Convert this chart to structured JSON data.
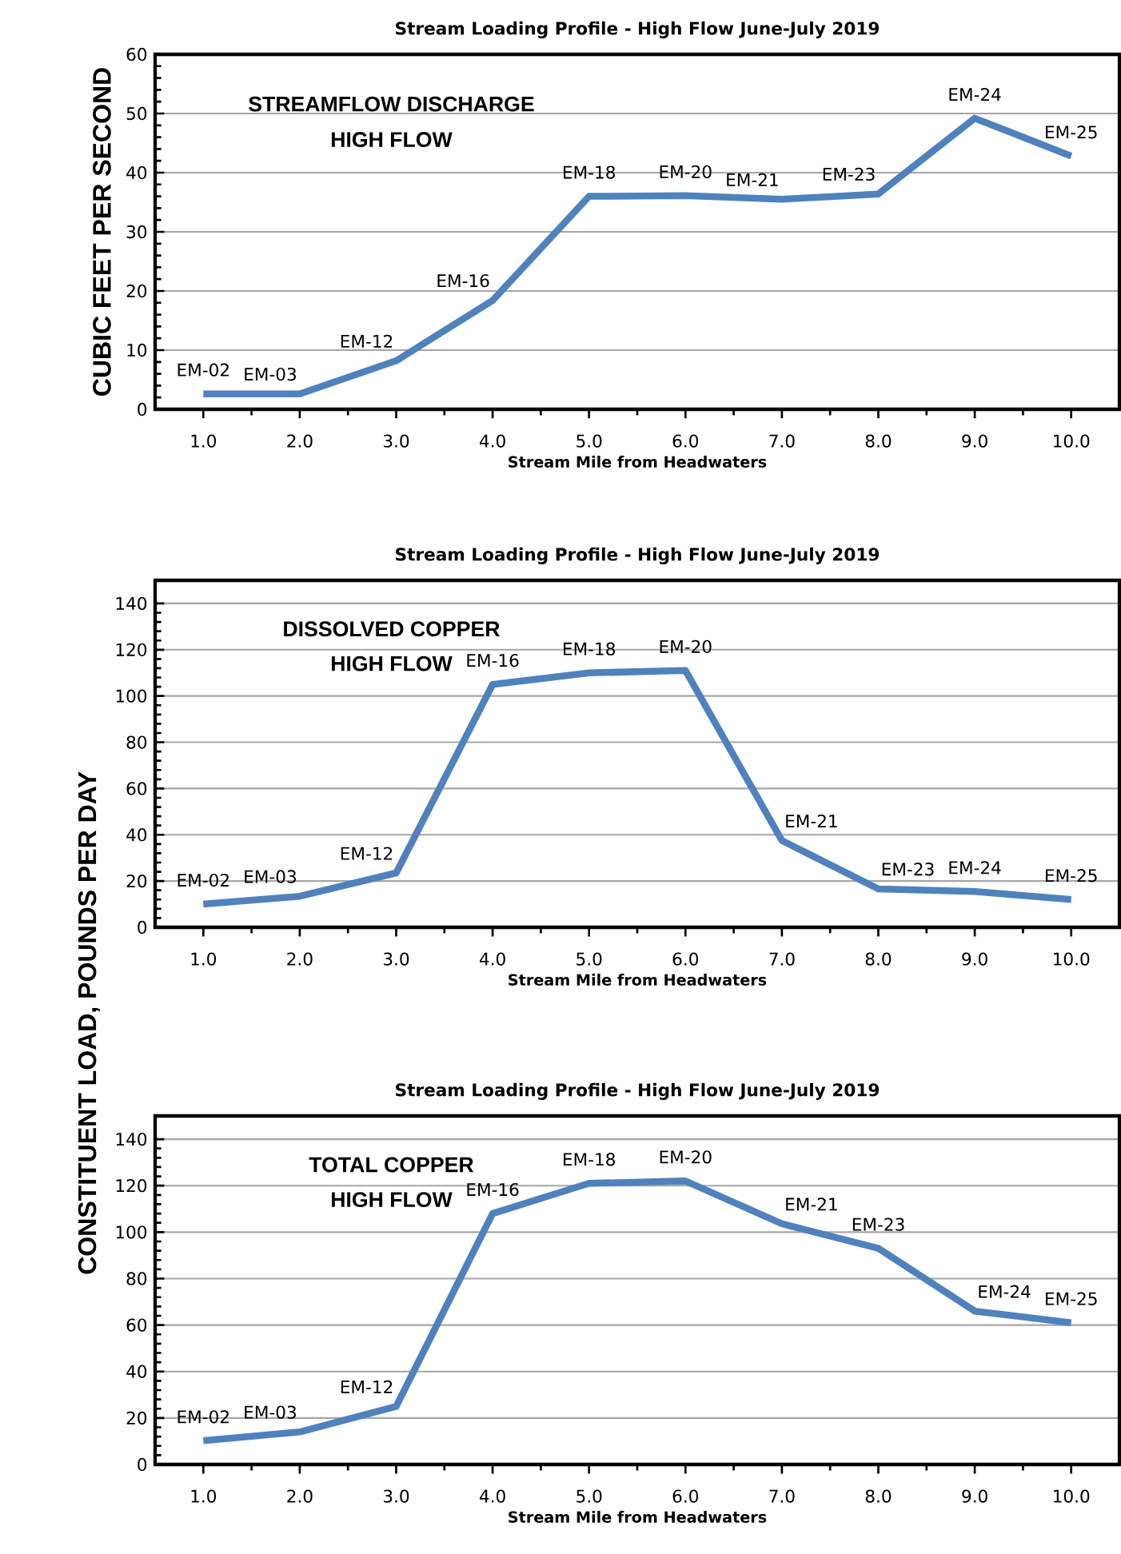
{
  "chart_data": [
    {
      "type": "line",
      "title": "Stream Loading Profile - High Flow June-July 2019",
      "xlabel": "Stream Mile from Headwaters",
      "ylabel": "CUBIC FEET PER SECOND",
      "x": [
        1,
        2,
        3,
        4,
        5,
        6,
        7,
        8,
        9,
        10
      ],
      "series": [
        {
          "color": "#4f81bd",
          "values": [
            2.6,
            2.6,
            8.2,
            18.4,
            36,
            36.1,
            35.5,
            36.4,
            49.2,
            42.8
          ]
        }
      ],
      "xlim": [
        0.5,
        10.5
      ],
      "xticks": [
        {
          "value": 1,
          "label": "1.0"
        },
        {
          "value": 2,
          "label": "2.0"
        },
        {
          "value": 3,
          "label": "3.0"
        },
        {
          "value": 4,
          "label": "4.0"
        },
        {
          "value": 5,
          "label": "5.0"
        },
        {
          "value": 6,
          "label": "6.0"
        },
        {
          "value": 7,
          "label": "7.0"
        },
        {
          "value": 8,
          "label": "8.0"
        },
        {
          "value": 9,
          "label": "9.0"
        },
        {
          "value": 10,
          "label": "10.0"
        }
      ],
      "ylim": [
        0,
        60
      ],
      "yticks": [
        0,
        10,
        20,
        30,
        40,
        50,
        60
      ],
      "grid": "y",
      "marker": "none",
      "line_style": "solid",
      "annotations": [
        "STREAMFLOW DISCHARGE",
        "HIGH FLOW",
        {
          "text": "EM-02",
          "x": 1,
          "y": 2.6
        },
        {
          "text": "EM-03",
          "x": 2,
          "y": 2.6
        },
        {
          "text": "EM-12",
          "x": 3,
          "y": 8.2
        },
        {
          "text": "EM-16",
          "x": 4,
          "y": 18.4
        },
        {
          "text": "EM-18",
          "x": 5,
          "y": 36
        },
        {
          "text": "EM-20",
          "x": 6,
          "y": 36.1
        },
        {
          "text": "EM-21",
          "x": 7,
          "y": 35.5
        },
        {
          "text": "EM-23",
          "x": 8,
          "y": 36.4
        },
        {
          "text": "EM-24",
          "x": 9,
          "y": 49.2
        },
        {
          "text": "EM-25",
          "x": 10,
          "y": 42.8
        }
      ]
    },
    {
      "type": "line",
      "title": "Stream Loading Profile - High Flow June-July 2019",
      "xlabel": "Stream Mile from Headwaters",
      "ylabel": "CONSTITUENT LOAD, POUNDS PER DAY",
      "x": [
        1,
        2,
        3,
        4,
        5,
        6,
        7,
        8,
        9,
        10
      ],
      "series": [
        {
          "color": "#4f81bd",
          "values": [
            10,
            13.4,
            23.5,
            105,
            110,
            111,
            37.5,
            16.6,
            15.5,
            12
          ]
        }
      ],
      "xlim": [
        0.5,
        10.5
      ],
      "xticks": [
        {
          "value": 1,
          "label": "1.0"
        },
        {
          "value": 2,
          "label": "2.0"
        },
        {
          "value": 3,
          "label": "3.0"
        },
        {
          "value": 4,
          "label": "4.0"
        },
        {
          "value": 5,
          "label": "5.0"
        },
        {
          "value": 6,
          "label": "6.0"
        },
        {
          "value": 7,
          "label": "7.0"
        },
        {
          "value": 8,
          "label": "8.0"
        },
        {
          "value": 9,
          "label": "9.0"
        },
        {
          "value": 10,
          "label": "10.0"
        }
      ],
      "ylim": [
        0,
        150
      ],
      "yticks": [
        0,
        20,
        40,
        60,
        80,
        100,
        120,
        140
      ],
      "grid": "y",
      "marker": "none",
      "line_style": "solid",
      "annotations": [
        "DISSOLVED COPPER",
        "HIGH FLOW",
        {
          "text": "EM-02",
          "x": 1,
          "y": 10
        },
        {
          "text": "EM-03",
          "x": 2,
          "y": 13.4
        },
        {
          "text": "EM-12",
          "x": 3,
          "y": 23.5
        },
        {
          "text": "EM-16",
          "x": 4,
          "y": 105
        },
        {
          "text": "EM-18",
          "x": 5,
          "y": 110
        },
        {
          "text": "EM-20",
          "x": 6,
          "y": 111
        },
        {
          "text": "EM-21",
          "x": 7,
          "y": 37.5
        },
        {
          "text": "EM-23",
          "x": 8,
          "y": 16.6
        },
        {
          "text": "EM-24",
          "x": 9,
          "y": 15.5
        },
        {
          "text": "EM-25",
          "x": 10,
          "y": 12
        }
      ]
    },
    {
      "type": "line",
      "title": "Stream Loading Profile - High Flow June-July 2019",
      "xlabel": "Stream Mile from Headwaters",
      "x": [
        1,
        2,
        3,
        4,
        5,
        6,
        7,
        8,
        9,
        10
      ],
      "series": [
        {
          "color": "#4f81bd",
          "values": [
            10.2,
            14,
            25,
            108,
            121,
            122,
            103.6,
            93,
            66,
            61
          ]
        }
      ],
      "xlim": [
        0.5,
        10.5
      ],
      "xticks": [
        {
          "value": 1,
          "label": "1.0"
        },
        {
          "value": 2,
          "label": "2.0"
        },
        {
          "value": 3,
          "label": "3.0"
        },
        {
          "value": 4,
          "label": "4.0"
        },
        {
          "value": 5,
          "label": "5.0"
        },
        {
          "value": 6,
          "label": "6.0"
        },
        {
          "value": 7,
          "label": "7.0"
        },
        {
          "value": 8,
          "label": "8.0"
        },
        {
          "value": 9,
          "label": "9.0"
        },
        {
          "value": 10,
          "label": "10.0"
        }
      ],
      "ylim": [
        0,
        150
      ],
      "yticks": [
        0,
        20,
        40,
        60,
        80,
        100,
        120,
        140
      ],
      "grid": "y",
      "marker": "none",
      "line_style": "solid",
      "annotations": [
        "TOTAL COPPER",
        "HIGH FLOW",
        {
          "text": "EM-02",
          "x": 1,
          "y": 10.2
        },
        {
          "text": "EM-03",
          "x": 2,
          "y": 14
        },
        {
          "text": "EM-12",
          "x": 3,
          "y": 25
        },
        {
          "text": "EM-16",
          "x": 4,
          "y": 108
        },
        {
          "text": "EM-18",
          "x": 5,
          "y": 121
        },
        {
          "text": "EM-20",
          "x": 6,
          "y": 122
        },
        {
          "text": "EM-21",
          "x": 7,
          "y": 103.6
        },
        {
          "text": "EM-23",
          "x": 8,
          "y": 93
        },
        {
          "text": "EM-24",
          "x": 9,
          "y": 66
        },
        {
          "text": "EM-25",
          "x": 10,
          "y": 61
        }
      ]
    }
  ]
}
